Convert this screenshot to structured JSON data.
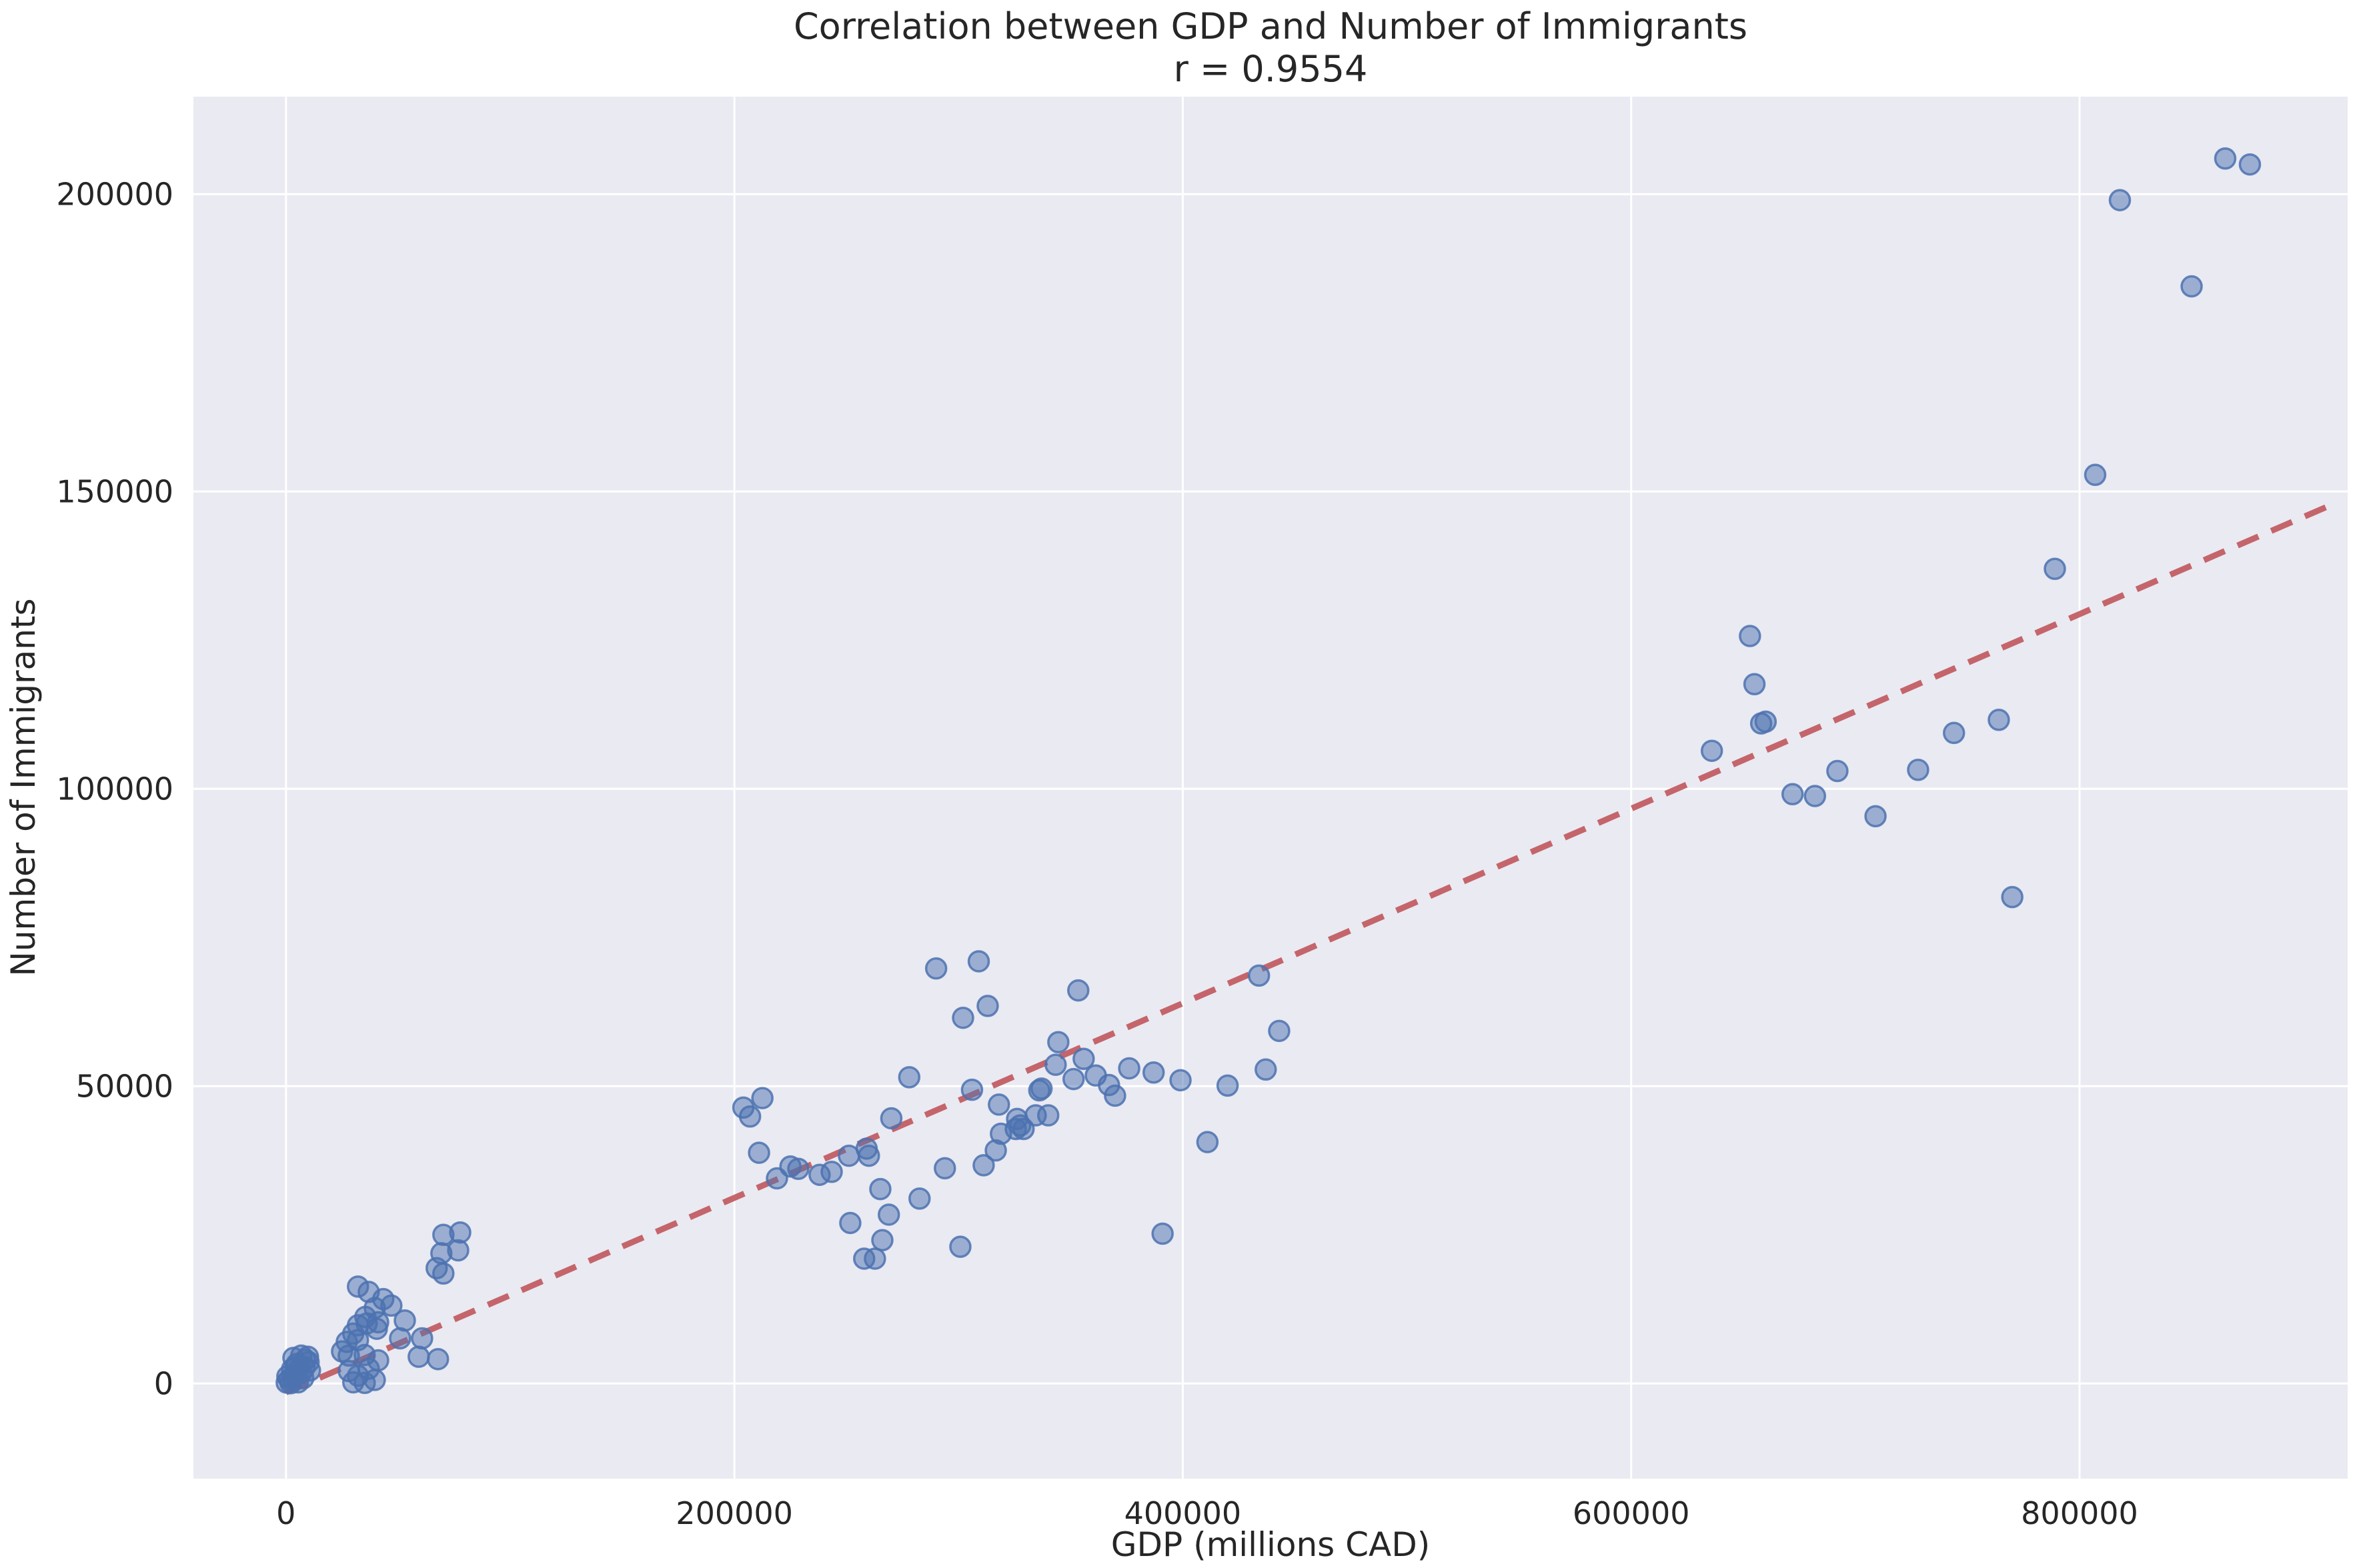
{
  "chart": {
    "title": "Correlation between GDP and Number of Immigrants",
    "subtitle": "r = 0.9554",
    "xlabel": "GDP (millions CAD)",
    "ylabel": "Number of Immigrants"
  },
  "chart_data": {
    "type": "scatter",
    "title": "Correlation between GDP and Number of Immigrants",
    "subtitle": "r = 0.9554",
    "xlabel": "GDP (millions CAD)",
    "ylabel": "Number of Immigrants",
    "grid": true,
    "legend": "none",
    "xlim": [
      -41300,
      919600
    ],
    "ylim": [
      -16000,
      216400
    ],
    "x_ticks": [
      0,
      200000,
      400000,
      600000,
      800000
    ],
    "y_ticks": [
      0,
      50000,
      100000,
      150000,
      200000
    ],
    "x_tick_labels": [
      "0",
      "200000",
      "400000",
      "600000",
      "800000"
    ],
    "y_tick_labels": [
      "0",
      "50000",
      "100000",
      "150000",
      "200000"
    ],
    "colors": {
      "axes_background": "#eaeaf2",
      "gridline": "#ffffff",
      "point": "#4c72b0",
      "trendline": "#c0565c",
      "text": "#262626"
    },
    "trendline": {
      "style": "dashed",
      "x": [
        0,
        913000
      ],
      "y": [
        -1500,
        147870
      ]
    },
    "points": [
      [
        300,
        150
      ],
      [
        600,
        1200
      ],
      [
        2100,
        50
      ],
      [
        2700,
        2400
      ],
      [
        3300,
        4300
      ],
      [
        3900,
        1300
      ],
      [
        4800,
        3300
      ],
      [
        5400,
        200
      ],
      [
        6800,
        4700
      ],
      [
        6800,
        1800
      ],
      [
        8300,
        2700
      ],
      [
        8600,
        4000
      ],
      [
        9800,
        4500
      ],
      [
        10100,
        3600
      ],
      [
        10700,
        2200
      ],
      [
        7700,
        900
      ],
      [
        5000,
        2000
      ],
      [
        4200,
        2800
      ],
      [
        1500,
        700
      ],
      [
        3000,
        900
      ],
      [
        27100,
        7000
      ],
      [
        32100,
        7300
      ],
      [
        28000,
        4700
      ],
      [
        35100,
        4800
      ],
      [
        28000,
        2100
      ],
      [
        32100,
        1300
      ],
      [
        36900,
        2500
      ],
      [
        41100,
        3900
      ],
      [
        30000,
        200
      ],
      [
        35100,
        100
      ],
      [
        39600,
        600
      ],
      [
        25000,
        5400
      ],
      [
        30000,
        8400
      ],
      [
        32100,
        9800
      ],
      [
        36000,
        10100
      ],
      [
        40500,
        9200
      ],
      [
        35400,
        11200
      ],
      [
        41100,
        10300
      ],
      [
        32100,
        16300
      ],
      [
        36900,
        15400
      ],
      [
        39600,
        12700
      ],
      [
        43400,
        14200
      ],
      [
        47000,
        13100
      ],
      [
        53000,
        10600
      ],
      [
        50900,
        7600
      ],
      [
        60700,
        7600
      ],
      [
        59200,
        4500
      ],
      [
        67800,
        4100
      ],
      [
        67200,
        19400
      ],
      [
        70200,
        18500
      ],
      [
        69300,
        21900
      ],
      [
        76800,
        22400
      ],
      [
        70200,
        25000
      ],
      [
        77700,
        25400
      ],
      [
        204000,
        46400
      ],
      [
        207000,
        44900
      ],
      [
        212500,
        48000
      ],
      [
        211000,
        38800
      ],
      [
        219000,
        34500
      ],
      [
        225000,
        36500
      ],
      [
        228500,
        36100
      ],
      [
        238000,
        35100
      ],
      [
        243400,
        35600
      ],
      [
        251100,
        38300
      ],
      [
        260000,
        38300
      ],
      [
        259000,
        39500
      ],
      [
        251700,
        27000
      ],
      [
        257900,
        21000
      ],
      [
        262700,
        21000
      ],
      [
        265100,
        32700
      ],
      [
        266000,
        24100
      ],
      [
        268900,
        28400
      ],
      [
        270000,
        44600
      ],
      [
        282600,
        31100
      ],
      [
        293900,
        36200
      ],
      [
        300800,
        23000
      ],
      [
        311200,
        36700
      ],
      [
        316600,
        39200
      ],
      [
        318900,
        42000
      ],
      [
        278000,
        51500
      ],
      [
        306000,
        49400
      ],
      [
        318000,
        46900
      ],
      [
        325500,
        42800
      ],
      [
        326100,
        44500
      ],
      [
        327500,
        43400
      ],
      [
        329000,
        42800
      ],
      [
        334400,
        45100
      ],
      [
        336000,
        49300
      ],
      [
        337000,
        49600
      ],
      [
        340000,
        45100
      ],
      [
        290000,
        69800
      ],
      [
        309000,
        71000
      ],
      [
        302000,
        61500
      ],
      [
        313000,
        63500
      ],
      [
        343300,
        53600
      ],
      [
        344500,
        57400
      ],
      [
        351300,
        51200
      ],
      [
        353400,
        66100
      ],
      [
        355800,
        54600
      ],
      [
        361200,
        51800
      ],
      [
        367100,
        50200
      ],
      [
        369800,
        48400
      ],
      [
        376100,
        53000
      ],
      [
        387000,
        52300
      ],
      [
        399000,
        51000
      ],
      [
        391000,
        25200
      ],
      [
        411000,
        40600
      ],
      [
        420000,
        50100
      ],
      [
        434000,
        68600
      ],
      [
        437000,
        52800
      ],
      [
        443000,
        59300
      ],
      [
        636000,
        106400
      ],
      [
        653000,
        125700
      ],
      [
        655000,
        117600
      ],
      [
        658000,
        111000
      ],
      [
        660000,
        111300
      ],
      [
        672000,
        99100
      ],
      [
        682000,
        98800
      ],
      [
        692000,
        103000
      ],
      [
        709000,
        95400
      ],
      [
        728000,
        103200
      ],
      [
        744000,
        109400
      ],
      [
        764000,
        111600
      ],
      [
        770000,
        81800
      ],
      [
        789000,
        137000
      ],
      [
        807000,
        152800
      ],
      [
        818000,
        199000
      ],
      [
        850000,
        184500
      ],
      [
        865000,
        206000
      ],
      [
        876000,
        205000
      ]
    ]
  }
}
